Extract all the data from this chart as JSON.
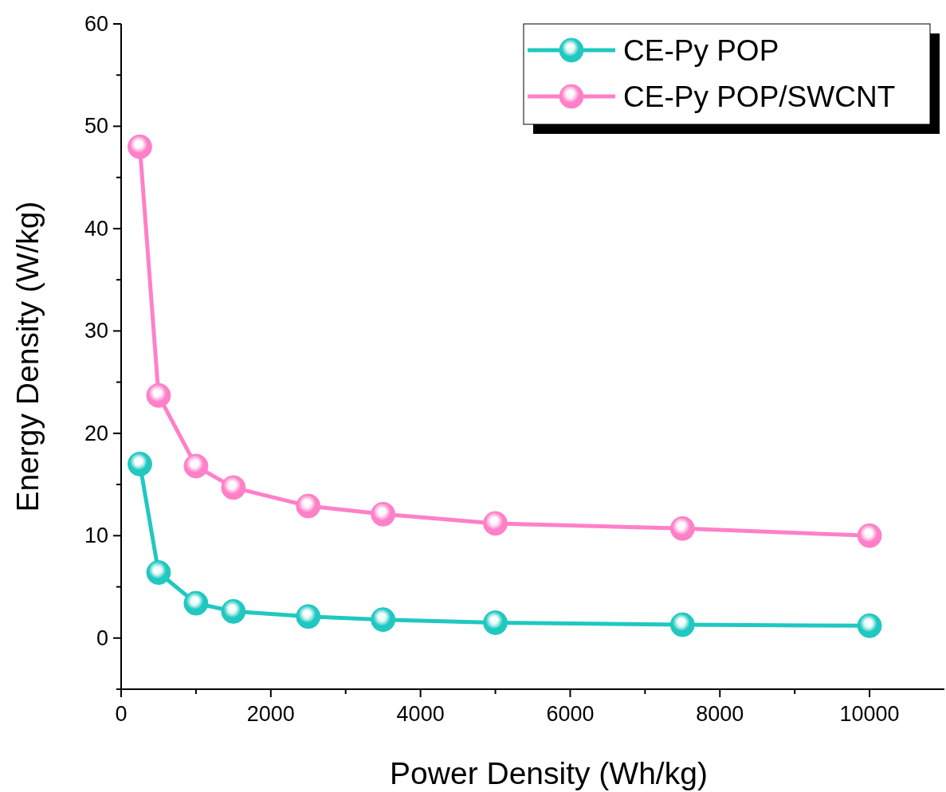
{
  "chart_data": {
    "type": "line",
    "xlabel": "Power Density (Wh/kg)",
    "ylabel": "Energy Density (W/kg)",
    "x": [
      250,
      500,
      1000,
      1500,
      2500,
      3500,
      5000,
      7500,
      10000
    ],
    "series": [
      {
        "name": "CE-Py POP",
        "color": "#1fc8c0",
        "values": [
          17.0,
          6.4,
          3.4,
          2.6,
          2.1,
          1.8,
          1.5,
          1.3,
          1.2
        ]
      },
      {
        "name": "CE-Py POP/SWCNT",
        "color": "#ff80c8",
        "values": [
          48.0,
          23.7,
          16.8,
          14.7,
          12.9,
          12.1,
          11.2,
          10.7,
          10.0
        ]
      }
    ],
    "xlim": [
      0,
      11000
    ],
    "xticks": [
      0,
      {
        "value": 1000,
        "label": null
      },
      2000,
      {
        "value": 3000,
        "label": null
      },
      4000,
      {
        "value": 5000,
        "label": null
      },
      6000,
      {
        "value": 7000,
        "label": null
      },
      8000,
      {
        "value": 9000,
        "label": null
      },
      10000
    ],
    "ylim": [
      -5,
      60
    ],
    "yticks": [
      {
        "value": -5,
        "label": null
      },
      0,
      {
        "value": 5,
        "label": null
      },
      10,
      {
        "value": 15,
        "label": null
      },
      20,
      {
        "value": 25,
        "label": null
      },
      30,
      {
        "value": 35,
        "label": null
      },
      40,
      {
        "value": 45,
        "label": null
      },
      50,
      {
        "value": 55,
        "label": null
      },
      60
    ],
    "grid": false,
    "legend": "top right",
    "marker": "circle",
    "line_style": "solid"
  }
}
